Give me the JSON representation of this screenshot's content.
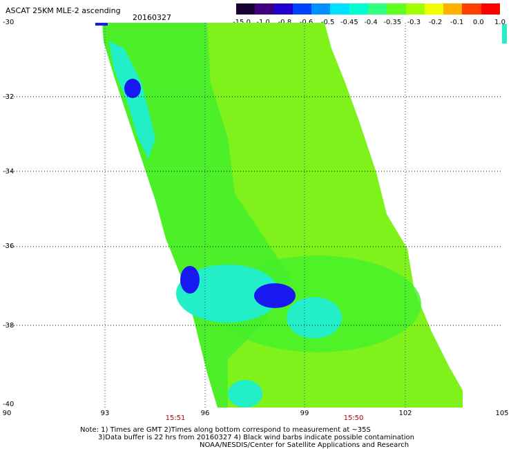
{
  "title": "ASCAT 25KM MLE-2 ascending",
  "date": "20160327",
  "colorbar": {
    "ticks": [
      "-15.0",
      "-1.0",
      "-0.8",
      "-0.6",
      "-0.5",
      "-0.45",
      "-0.4",
      "-0.35",
      "-0.3",
      "-0.2",
      "-0.1",
      "0.0",
      "1.0"
    ],
    "colors": [
      "#1a0030",
      "#400080",
      "#2000d0",
      "#0040ff",
      "#0090ff",
      "#00e0ff",
      "#00ffd0",
      "#30ff80",
      "#60ff20",
      "#a0ff00",
      "#f0ff00",
      "#ffb000",
      "#ff4000",
      "#ff0000"
    ]
  },
  "axes": {
    "y_ticks": [
      "-30",
      "-32",
      "-34",
      "-36",
      "-38",
      "-40"
    ],
    "x_ticks": [
      "90",
      "93",
      "96",
      "99",
      "102",
      "105"
    ],
    "time_labels": [
      "15:51",
      "15:50"
    ]
  },
  "colors": {
    "swath_green": "#44f02a",
    "swath_lime": "#7ff21c",
    "cyan": "#22eec8",
    "blue": "#1818f0",
    "time_red": "#b00000",
    "grid": "#000000"
  },
  "notes": [
    "Note: 1) Times are GMT 2)Times along bottom correspond to measurement at ~35S",
    "3)Data buffer is 22 hrs from 20160327 4) Black wind barbs indicate possible contamination",
    "NOAA/NESDIS/Center for Satellite Applications and Research"
  ]
}
